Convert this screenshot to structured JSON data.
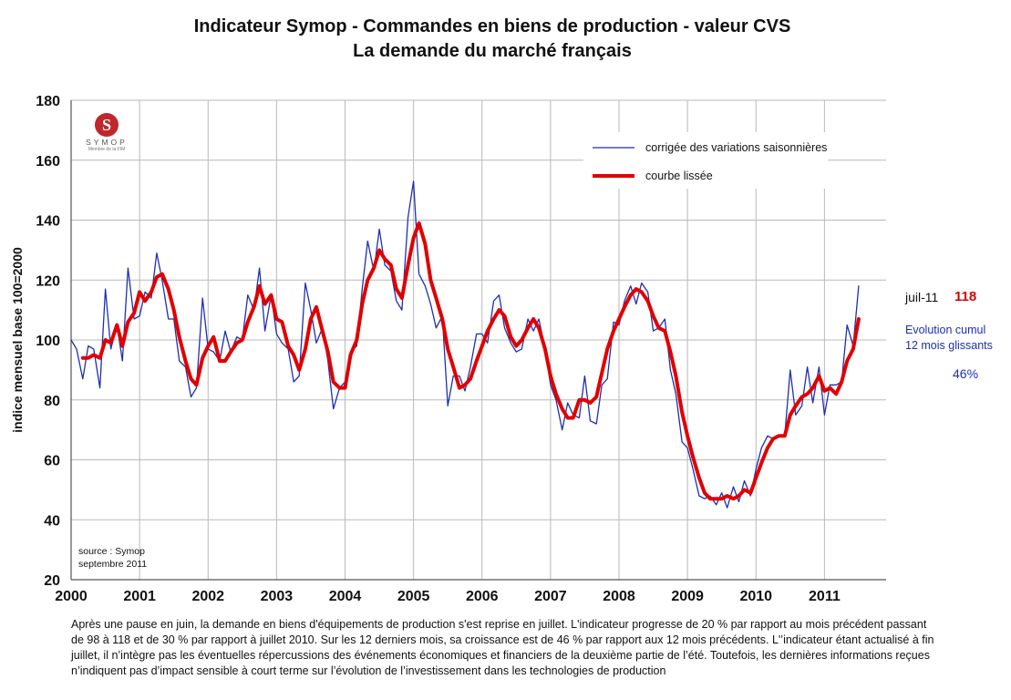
{
  "title_line1": "Indicateur Symop - Commandes en biens de production  -  valeur CVS",
  "title_line2": "La demande du marché français",
  "logo": {
    "name": "SYMOP",
    "subtitle": "Membre de la FIM",
    "color": "#c0272d"
  },
  "source_line1": "source :  Symop",
  "source_line2": "septembre 2011",
  "side": {
    "date": "juil-11",
    "value": "118",
    "evolution_line1": "Evolution cumul",
    "evolution_line2": "12 mois glissants",
    "percent": "46%"
  },
  "note_lines": [
    "Après une pause en juin, la demande en biens d'équipements de production s'est reprise en juillet. L'indicateur progresse de  20 % par rapport au mois précédent passant",
    "de 98 à 118 et de 30 % par rapport à juillet 2010. Sur les 12 derniers mois, sa croissance est de 46 % par rapport aux 12 mois précédents. L'’indicateur étant actualisé à fin",
    "juillet, il n’intègre pas les éventuelles répercussions des événements économiques et financiers de la deuxième partie de l’été. Toutefois, les dernières informations reçues",
    "n’indiquent pas d’impact sensible à court terme sur l’évolution de l’investissement dans les technologies de production"
  ],
  "chart_data": {
    "type": "line",
    "ylabel": "indice mensuel base 100=2000",
    "xlabel": "",
    "ylim": [
      20,
      180
    ],
    "yticks": [
      20,
      40,
      60,
      80,
      100,
      120,
      140,
      160,
      180
    ],
    "xlim": [
      2000.0,
      2011.9
    ],
    "xticks": [
      "2000",
      "2001",
      "2002",
      "2003",
      "2004",
      "2005",
      "2006",
      "2007",
      "2008",
      "2009",
      "2010",
      "2011"
    ],
    "grid": true,
    "legend_position": "top-right",
    "series": [
      {
        "name": "corrigée des variations saisonnières",
        "color": "#1f2fb0",
        "points": [
          [
            2000.0,
            100
          ],
          [
            2000.08,
            97
          ],
          [
            2000.17,
            87
          ],
          [
            2000.25,
            98
          ],
          [
            2000.33,
            97
          ],
          [
            2000.42,
            84
          ],
          [
            2000.5,
            117
          ],
          [
            2000.58,
            97
          ],
          [
            2000.67,
            105
          ],
          [
            2000.75,
            93
          ],
          [
            2000.83,
            124
          ],
          [
            2000.92,
            107
          ],
          [
            2001.0,
            108
          ],
          [
            2001.08,
            116
          ],
          [
            2001.17,
            114
          ],
          [
            2001.25,
            129
          ],
          [
            2001.33,
            120
          ],
          [
            2001.42,
            107
          ],
          [
            2001.5,
            107
          ],
          [
            2001.58,
            93
          ],
          [
            2001.67,
            91
          ],
          [
            2001.75,
            81
          ],
          [
            2001.83,
            84
          ],
          [
            2001.92,
            114
          ],
          [
            2002.0,
            97
          ],
          [
            2002.08,
            96
          ],
          [
            2002.17,
            93
          ],
          [
            2002.25,
            103
          ],
          [
            2002.33,
            96
          ],
          [
            2002.42,
            101
          ],
          [
            2002.5,
            100
          ],
          [
            2002.58,
            115
          ],
          [
            2002.67,
            110
          ],
          [
            2002.75,
            124
          ],
          [
            2002.83,
            103
          ],
          [
            2002.92,
            115
          ],
          [
            2003.0,
            102
          ],
          [
            2003.08,
            99
          ],
          [
            2003.17,
            97
          ],
          [
            2003.25,
            86
          ],
          [
            2003.33,
            88
          ],
          [
            2003.42,
            119
          ],
          [
            2003.5,
            110
          ],
          [
            2003.58,
            99
          ],
          [
            2003.67,
            104
          ],
          [
            2003.75,
            93
          ],
          [
            2003.83,
            77
          ],
          [
            2003.92,
            84
          ],
          [
            2004.0,
            86
          ],
          [
            2004.08,
            96
          ],
          [
            2004.17,
            98
          ],
          [
            2004.25,
            117
          ],
          [
            2004.33,
            133
          ],
          [
            2004.42,
            123
          ],
          [
            2004.5,
            137
          ],
          [
            2004.58,
            125
          ],
          [
            2004.67,
            123
          ],
          [
            2004.75,
            113
          ],
          [
            2004.83,
            110
          ],
          [
            2004.92,
            141
          ],
          [
            2005.0,
            153
          ],
          [
            2005.08,
            122
          ],
          [
            2005.17,
            118
          ],
          [
            2005.25,
            112
          ],
          [
            2005.33,
            104
          ],
          [
            2005.42,
            108
          ],
          [
            2005.5,
            78
          ],
          [
            2005.58,
            88
          ],
          [
            2005.67,
            88
          ],
          [
            2005.75,
            83
          ],
          [
            2005.83,
            91
          ],
          [
            2005.92,
            102
          ],
          [
            2006.0,
            102
          ],
          [
            2006.08,
            99
          ],
          [
            2006.17,
            113
          ],
          [
            2006.25,
            115
          ],
          [
            2006.33,
            104
          ],
          [
            2006.42,
            99
          ],
          [
            2006.5,
            96
          ],
          [
            2006.58,
            97
          ],
          [
            2006.67,
            107
          ],
          [
            2006.75,
            103
          ],
          [
            2006.83,
            107
          ],
          [
            2006.92,
            97
          ],
          [
            2007.0,
            85
          ],
          [
            2007.08,
            80
          ],
          [
            2007.17,
            70
          ],
          [
            2007.25,
            79
          ],
          [
            2007.33,
            75
          ],
          [
            2007.42,
            74
          ],
          [
            2007.5,
            88
          ],
          [
            2007.58,
            73
          ],
          [
            2007.67,
            72
          ],
          [
            2007.75,
            85
          ],
          [
            2007.83,
            87
          ],
          [
            2007.92,
            106
          ],
          [
            2008.0,
            105
          ],
          [
            2008.08,
            113
          ],
          [
            2008.17,
            118
          ],
          [
            2008.25,
            112
          ],
          [
            2008.33,
            119
          ],
          [
            2008.42,
            116
          ],
          [
            2008.5,
            103
          ],
          [
            2008.58,
            104
          ],
          [
            2008.67,
            107
          ],
          [
            2008.75,
            90
          ],
          [
            2008.83,
            82
          ],
          [
            2008.92,
            66
          ],
          [
            2009.0,
            64
          ],
          [
            2009.08,
            57
          ],
          [
            2009.17,
            48
          ],
          [
            2009.25,
            47
          ],
          [
            2009.33,
            48
          ],
          [
            2009.42,
            45
          ],
          [
            2009.5,
            49
          ],
          [
            2009.58,
            44
          ],
          [
            2009.67,
            51
          ],
          [
            2009.75,
            46
          ],
          [
            2009.83,
            53
          ],
          [
            2009.92,
            48
          ],
          [
            2010.0,
            57
          ],
          [
            2010.08,
            64
          ],
          [
            2010.17,
            68
          ],
          [
            2010.25,
            67
          ],
          [
            2010.33,
            68
          ],
          [
            2010.42,
            68
          ],
          [
            2010.5,
            90
          ],
          [
            2010.58,
            75
          ],
          [
            2010.67,
            78
          ],
          [
            2010.75,
            91
          ],
          [
            2010.83,
            79
          ],
          [
            2010.92,
            91
          ],
          [
            2011.0,
            75
          ],
          [
            2011.08,
            85
          ],
          [
            2011.17,
            85
          ],
          [
            2011.25,
            86
          ],
          [
            2011.33,
            105
          ],
          [
            2011.42,
            98
          ],
          [
            2011.5,
            118
          ]
        ]
      },
      {
        "name": "courbe lissée",
        "color": "#e00000",
        "points": [
          [
            2000.17,
            94
          ],
          [
            2000.25,
            94
          ],
          [
            2000.33,
            95
          ],
          [
            2000.42,
            94
          ],
          [
            2000.5,
            100
          ],
          [
            2000.58,
            99
          ],
          [
            2000.67,
            105
          ],
          [
            2000.75,
            98
          ],
          [
            2000.83,
            106
          ],
          [
            2000.92,
            109
          ],
          [
            2001.0,
            116
          ],
          [
            2001.08,
            113
          ],
          [
            2001.17,
            116
          ],
          [
            2001.25,
            121
          ],
          [
            2001.33,
            122
          ],
          [
            2001.42,
            117
          ],
          [
            2001.5,
            110
          ],
          [
            2001.58,
            101
          ],
          [
            2001.67,
            93
          ],
          [
            2001.75,
            87
          ],
          [
            2001.83,
            85
          ],
          [
            2001.92,
            94
          ],
          [
            2002.0,
            98
          ],
          [
            2002.08,
            101
          ],
          [
            2002.17,
            93
          ],
          [
            2002.25,
            93
          ],
          [
            2002.33,
            96
          ],
          [
            2002.42,
            99
          ],
          [
            2002.5,
            100
          ],
          [
            2002.58,
            106
          ],
          [
            2002.67,
            111
          ],
          [
            2002.75,
            118
          ],
          [
            2002.83,
            112
          ],
          [
            2002.92,
            115
          ],
          [
            2003.0,
            107
          ],
          [
            2003.08,
            106
          ],
          [
            2003.17,
            98
          ],
          [
            2003.25,
            95
          ],
          [
            2003.33,
            90
          ],
          [
            2003.42,
            97
          ],
          [
            2003.5,
            107
          ],
          [
            2003.58,
            111
          ],
          [
            2003.67,
            103
          ],
          [
            2003.75,
            96
          ],
          [
            2003.83,
            86
          ],
          [
            2003.92,
            84
          ],
          [
            2004.0,
            84
          ],
          [
            2004.08,
            95
          ],
          [
            2004.17,
            100
          ],
          [
            2004.25,
            112
          ],
          [
            2004.33,
            120
          ],
          [
            2004.42,
            124
          ],
          [
            2004.5,
            130
          ],
          [
            2004.58,
            127
          ],
          [
            2004.67,
            125
          ],
          [
            2004.75,
            117
          ],
          [
            2004.83,
            114
          ],
          [
            2004.92,
            125
          ],
          [
            2005.0,
            134
          ],
          [
            2005.08,
            139
          ],
          [
            2005.17,
            132
          ],
          [
            2005.25,
            120
          ],
          [
            2005.33,
            114
          ],
          [
            2005.42,
            107
          ],
          [
            2005.5,
            97
          ],
          [
            2005.58,
            91
          ],
          [
            2005.67,
            84
          ],
          [
            2005.75,
            85
          ],
          [
            2005.83,
            87
          ],
          [
            2005.92,
            93
          ],
          [
            2006.0,
            98
          ],
          [
            2006.08,
            103
          ],
          [
            2006.17,
            107
          ],
          [
            2006.25,
            110
          ],
          [
            2006.33,
            108
          ],
          [
            2006.42,
            101
          ],
          [
            2006.5,
            98
          ],
          [
            2006.58,
            100
          ],
          [
            2006.67,
            104
          ],
          [
            2006.75,
            107
          ],
          [
            2006.83,
            104
          ],
          [
            2006.92,
            97
          ],
          [
            2007.0,
            88
          ],
          [
            2007.08,
            82
          ],
          [
            2007.17,
            77
          ],
          [
            2007.25,
            74
          ],
          [
            2007.33,
            74
          ],
          [
            2007.42,
            80
          ],
          [
            2007.5,
            80
          ],
          [
            2007.58,
            79
          ],
          [
            2007.67,
            81
          ],
          [
            2007.75,
            89
          ],
          [
            2007.83,
            97
          ],
          [
            2007.92,
            103
          ],
          [
            2008.0,
            107
          ],
          [
            2008.08,
            111
          ],
          [
            2008.17,
            115
          ],
          [
            2008.25,
            117
          ],
          [
            2008.33,
            116
          ],
          [
            2008.42,
            113
          ],
          [
            2008.5,
            108
          ],
          [
            2008.58,
            104
          ],
          [
            2008.67,
            103
          ],
          [
            2008.75,
            96
          ],
          [
            2008.83,
            88
          ],
          [
            2008.92,
            76
          ],
          [
            2009.0,
            68
          ],
          [
            2009.08,
            61
          ],
          [
            2009.17,
            54
          ],
          [
            2009.25,
            49
          ],
          [
            2009.33,
            47
          ],
          [
            2009.42,
            47
          ],
          [
            2009.5,
            47
          ],
          [
            2009.58,
            48
          ],
          [
            2009.67,
            47
          ],
          [
            2009.75,
            48
          ],
          [
            2009.83,
            50
          ],
          [
            2009.92,
            49
          ],
          [
            2010.0,
            54
          ],
          [
            2010.08,
            59
          ],
          [
            2010.17,
            64
          ],
          [
            2010.25,
            67
          ],
          [
            2010.33,
            68
          ],
          [
            2010.42,
            68
          ],
          [
            2010.5,
            75
          ],
          [
            2010.58,
            78
          ],
          [
            2010.67,
            81
          ],
          [
            2010.75,
            82
          ],
          [
            2010.83,
            84
          ],
          [
            2010.92,
            88
          ],
          [
            2011.0,
            83
          ],
          [
            2011.08,
            84
          ],
          [
            2011.17,
            82
          ],
          [
            2011.25,
            86
          ],
          [
            2011.33,
            93
          ],
          [
            2011.42,
            97
          ],
          [
            2011.5,
            107
          ]
        ]
      }
    ]
  }
}
